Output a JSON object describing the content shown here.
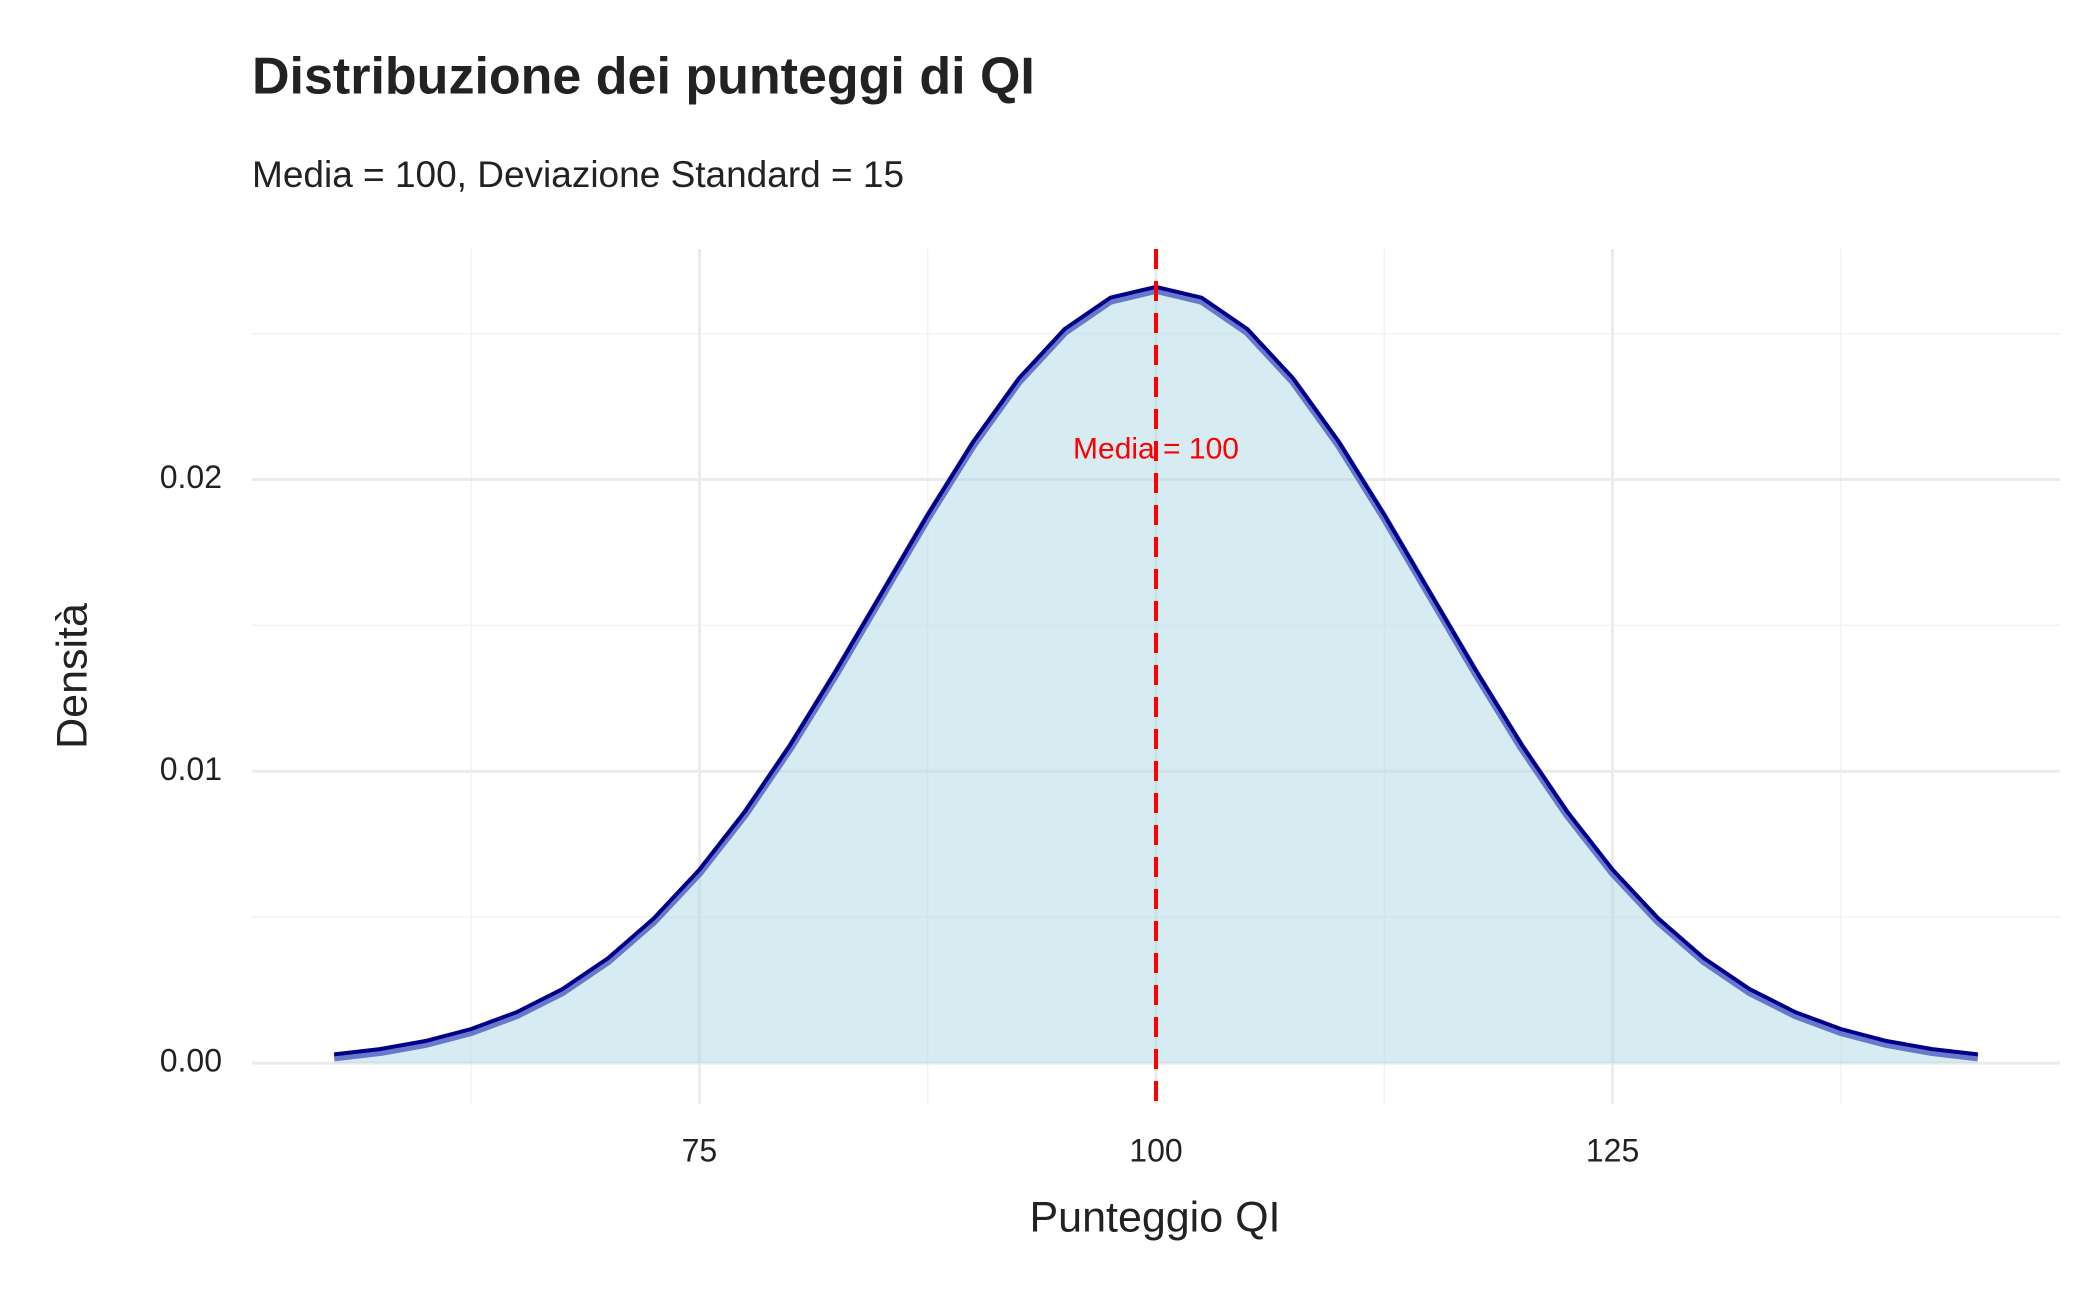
{
  "chart_data": {
    "type": "area",
    "title": "Distribuzione dei punteggi di QI",
    "subtitle": "Media = 100, Deviazione Standard = 15",
    "xlabel": "Punteggio QI",
    "ylabel": "Densità",
    "x": [
      55,
      57.5,
      60,
      62.5,
      65,
      67.5,
      70,
      72.5,
      75,
      77.5,
      80,
      82.5,
      85,
      87.5,
      90,
      92.5,
      95,
      97.5,
      100,
      102.5,
      105,
      107.5,
      110,
      112.5,
      115,
      117.5,
      120,
      122.5,
      125,
      127.5,
      130,
      132.5,
      135,
      137.5,
      140,
      142.5,
      145
    ],
    "values": [
      0.0003,
      0.00048,
      0.00076,
      0.00117,
      0.00175,
      0.00254,
      0.0036,
      0.00496,
      0.00663,
      0.00863,
      0.01093,
      0.01347,
      0.01613,
      0.01879,
      0.0213,
      0.02347,
      0.02516,
      0.02623,
      0.0266,
      0.02623,
      0.02516,
      0.02347,
      0.0213,
      0.01879,
      0.01613,
      0.01347,
      0.01093,
      0.00863,
      0.00663,
      0.00496,
      0.0036,
      0.00254,
      0.00175,
      0.00117,
      0.00076,
      0.00048,
      0.0003
    ],
    "fill_color": "#add8e6",
    "line_color": "#00008b",
    "vline": {
      "x": 100,
      "color": "#ff0000"
    },
    "annotation": {
      "text": "Media = 100",
      "x": 100,
      "y": 0.021,
      "color": "#ff0000"
    },
    "xlim": [
      50.5,
      149.5
    ],
    "ylim": [
      -0.0014,
      0.0279
    ],
    "xticks": [
      75,
      100,
      125
    ],
    "yticks": [
      {
        "value": 0,
        "label": "0.00"
      },
      0.01,
      0.02
    ],
    "grid": true
  }
}
